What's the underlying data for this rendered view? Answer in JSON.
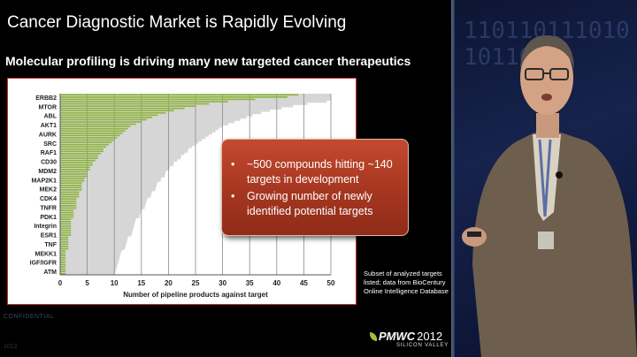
{
  "slide": {
    "title": "Cancer Diagnostic Market is Rapidly Evolving",
    "subtitle": "Molecular profiling is driving many new targeted cancer therapeutics",
    "callout_bullets": [
      "~500 compounds hitting ~140 targets in development",
      "Growing number of newly identified potential targets"
    ],
    "bullet_glyph": "•",
    "source_note": "Subset of analyzed targets listed; data from BioCentury Online Intelligence Database",
    "confidential": "CONFIDENTIAL",
    "faint_mark": "1012",
    "logo": {
      "brand": "PMWC",
      "year": "2012",
      "location": "SILICON VALLEY"
    }
  },
  "speaker_panel": {
    "background_text": "1101101110101011010"
  },
  "chart_data": {
    "type": "bar",
    "orientation": "horizontal",
    "xlabel": "Number of pipeline products against target",
    "ylabel": "",
    "xlim": [
      0,
      50
    ],
    "xticks": [
      0,
      5,
      10,
      15,
      20,
      25,
      30,
      35,
      40,
      45,
      50
    ],
    "grid": true,
    "bar_color": "#8db43d",
    "shadow_color": "#d6d6d6",
    "category_labels": [
      "ERBB2",
      "MTOR",
      "ABL",
      "AKT1",
      "AURK",
      "SRC",
      "RAF1",
      "CD30",
      "MDM2",
      "MAP2K1",
      "MEK2",
      "CDK4",
      "TNFR",
      "PDK1",
      "Integrin",
      "ESR1",
      "TNF",
      "MEKK1",
      "IGF/IGFR",
      "ATM"
    ],
    "values": [
      44,
      42,
      36,
      31,
      27.5,
      25,
      23,
      21,
      19.5,
      18,
      17,
      16,
      15,
      14,
      13,
      12.5,
      12,
      11.5,
      11,
      10.5,
      10,
      9.5,
      9,
      8.5,
      8,
      8,
      7.5,
      7,
      7,
      6.5,
      6,
      6,
      5.5,
      5.5,
      5,
      5,
      5,
      4.5,
      4.5,
      4,
      4,
      4,
      4,
      3.5,
      3.5,
      3.5,
      3,
      3,
      3,
      3,
      3,
      2.5,
      2.5,
      2.5,
      2.5,
      2,
      2,
      2,
      2,
      2,
      2,
      2,
      2,
      1.5,
      1.5,
      1.5,
      1.5,
      1.5,
      1.5,
      1,
      1,
      1,
      1,
      1,
      1,
      1,
      1,
      1,
      1,
      1
    ]
  }
}
